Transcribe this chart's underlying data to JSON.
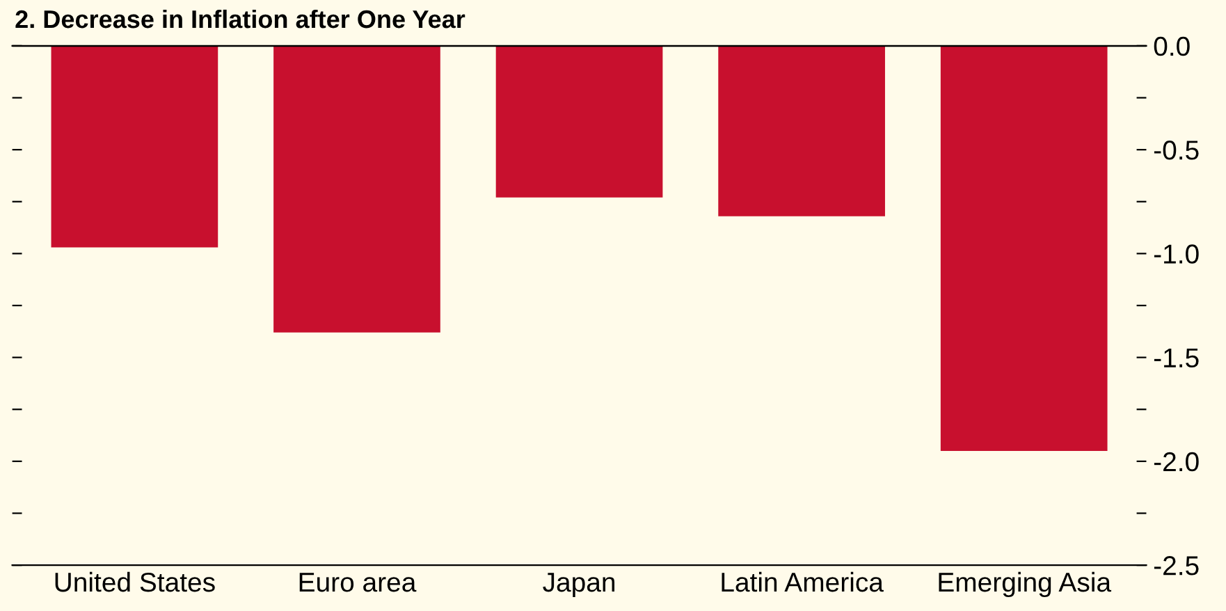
{
  "chart_data": {
    "type": "bar",
    "title": "2. Decrease in Inflation after One Year",
    "categories": [
      "United States",
      "Euro area",
      "Japan",
      "Latin America",
      "Emerging Asia"
    ],
    "series": [
      {
        "color": "#c8102e",
        "values": [
          -0.97,
          -1.38,
          -0.73,
          -0.82,
          -1.95
        ]
      }
    ],
    "ylim": [
      -2.5,
      0
    ],
    "yticks": [
      {
        "value": 0,
        "label": "0.0"
      },
      {
        "value": -0.25,
        "label": null
      },
      {
        "value": -0.5,
        "label": "-0.5"
      },
      {
        "value": -0.75,
        "label": null
      },
      {
        "value": -1.0,
        "label": "-1.0"
      },
      {
        "value": -1.25,
        "label": null
      },
      {
        "value": -1.5,
        "label": "-1.5"
      },
      {
        "value": -1.75,
        "label": null
      },
      {
        "value": -2.0,
        "label": "-2.0"
      },
      {
        "value": -2.25,
        "label": null
      },
      {
        "value": -2.5,
        "label": "-2.5"
      }
    ],
    "grid": false,
    "legend": false
  }
}
